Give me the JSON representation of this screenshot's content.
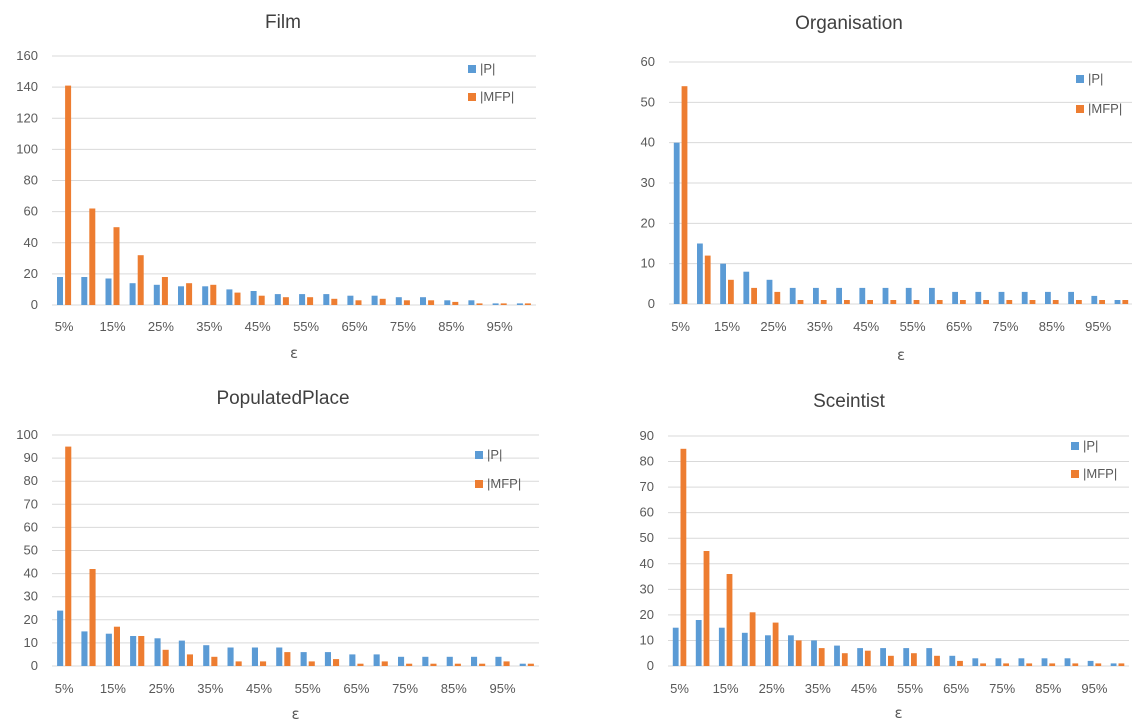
{
  "colors": {
    "p": "#5b9bd5",
    "mfp": "#ed7d31",
    "grid": "#d9d9d9",
    "text": "#595959"
  },
  "chart_data": [
    {
      "type": "bar",
      "title": "Film",
      "xlabel": "ε",
      "ylabel": "",
      "ylim": [
        0,
        160
      ],
      "yticks": [
        0,
        20,
        40,
        60,
        80,
        100,
        120,
        140,
        160
      ],
      "grid": true,
      "legend_position": "top-right",
      "categories": [
        "5%",
        "10%",
        "15%",
        "20%",
        "25%",
        "30%",
        "35%",
        "40%",
        "45%",
        "50%",
        "55%",
        "60%",
        "65%",
        "70%",
        "75%",
        "80%",
        "85%",
        "90%",
        "95%",
        "100%"
      ],
      "xtick_labels": [
        "5%",
        "",
        "15%",
        "",
        "25%",
        "",
        "35%",
        "",
        "45%",
        "",
        "55%",
        "",
        "65%",
        "",
        "75%",
        "",
        "85%",
        "",
        "95%",
        ""
      ],
      "series": [
        {
          "name": "|P|",
          "color": "#5b9bd5",
          "values": [
            18,
            18,
            17,
            14,
            13,
            12,
            12,
            10,
            9,
            7,
            7,
            7,
            6,
            6,
            5,
            5,
            3,
            3,
            1,
            1
          ]
        },
        {
          "name": "|MFP|",
          "color": "#ed7d31",
          "values": [
            141,
            62,
            50,
            32,
            18,
            14,
            13,
            8,
            6,
            5,
            5,
            4,
            3,
            4,
            3,
            3,
            2,
            1,
            1,
            1
          ]
        }
      ]
    },
    {
      "type": "bar",
      "title": "Organisation",
      "xlabel": "ε",
      "ylabel": "",
      "ylim": [
        0,
        60
      ],
      "yticks": [
        0,
        10,
        20,
        30,
        40,
        50,
        60
      ],
      "grid": true,
      "legend_position": "top-right",
      "categories": [
        "5%",
        "10%",
        "15%",
        "20%",
        "25%",
        "30%",
        "35%",
        "40%",
        "45%",
        "50%",
        "55%",
        "60%",
        "65%",
        "70%",
        "75%",
        "80%",
        "85%",
        "90%",
        "95%",
        "100%"
      ],
      "xtick_labels": [
        "5%",
        "",
        "15%",
        "",
        "25%",
        "",
        "35%",
        "",
        "45%",
        "",
        "55%",
        "",
        "65%",
        "",
        "75%",
        "",
        "85%",
        "",
        "95%",
        ""
      ],
      "series": [
        {
          "name": "|P|",
          "color": "#5b9bd5",
          "values": [
            40,
            15,
            10,
            8,
            6,
            4,
            4,
            4,
            4,
            4,
            4,
            4,
            3,
            3,
            3,
            3,
            3,
            3,
            2,
            1
          ]
        },
        {
          "name": "|MFP|",
          "color": "#ed7d31",
          "values": [
            54,
            12,
            6,
            4,
            3,
            1,
            1,
            1,
            1,
            1,
            1,
            1,
            1,
            1,
            1,
            1,
            1,
            1,
            1,
            1
          ]
        }
      ]
    },
    {
      "type": "bar",
      "title": "PopulatedPlace",
      "xlabel": "ε",
      "ylabel": "",
      "ylim": [
        0,
        100
      ],
      "yticks": [
        0,
        10,
        20,
        30,
        40,
        50,
        60,
        70,
        80,
        90,
        100
      ],
      "grid": true,
      "legend_position": "top-right",
      "categories": [
        "5%",
        "10%",
        "15%",
        "20%",
        "25%",
        "30%",
        "35%",
        "40%",
        "45%",
        "50%",
        "55%",
        "60%",
        "65%",
        "70%",
        "75%",
        "80%",
        "85%",
        "90%",
        "95%",
        "100%"
      ],
      "xtick_labels": [
        "5%",
        "",
        "15%",
        "",
        "25%",
        "",
        "35%",
        "",
        "45%",
        "",
        "55%",
        "",
        "65%",
        "",
        "75%",
        "",
        "85%",
        "",
        "95%",
        ""
      ],
      "series": [
        {
          "name": "|P|",
          "color": "#5b9bd5",
          "values": [
            24,
            15,
            14,
            13,
            12,
            11,
            9,
            8,
            8,
            8,
            6,
            6,
            5,
            5,
            4,
            4,
            4,
            4,
            4,
            1
          ]
        },
        {
          "name": "|MFP|",
          "color": "#ed7d31",
          "values": [
            95,
            42,
            17,
            13,
            7,
            5,
            4,
            2,
            2,
            6,
            2,
            3,
            1,
            2,
            1,
            1,
            1,
            1,
            2,
            1
          ]
        }
      ]
    },
    {
      "type": "bar",
      "title": "Sceintist",
      "xlabel": "ε",
      "ylabel": "",
      "ylim": [
        0,
        90
      ],
      "yticks": [
        0,
        10,
        20,
        30,
        40,
        50,
        60,
        70,
        80,
        90
      ],
      "grid": true,
      "legend_position": "top-right",
      "categories": [
        "5%",
        "10%",
        "15%",
        "20%",
        "25%",
        "30%",
        "35%",
        "40%",
        "45%",
        "50%",
        "55%",
        "60%",
        "65%",
        "70%",
        "75%",
        "80%",
        "85%",
        "90%",
        "95%",
        "100%"
      ],
      "xtick_labels": [
        "5%",
        "",
        "15%",
        "",
        "25%",
        "",
        "35%",
        "",
        "45%",
        "",
        "55%",
        "",
        "65%",
        "",
        "75%",
        "",
        "85%",
        "",
        "95%",
        ""
      ],
      "series": [
        {
          "name": "|P|",
          "color": "#5b9bd5",
          "values": [
            15,
            18,
            15,
            13,
            12,
            12,
            10,
            8,
            7,
            7,
            7,
            7,
            4,
            3,
            3,
            3,
            3,
            3,
            2,
            1
          ]
        },
        {
          "name": "|MFP|",
          "color": "#ed7d31",
          "values": [
            85,
            45,
            36,
            21,
            17,
            10,
            7,
            5,
            6,
            4,
            5,
            4,
            2,
            1,
            1,
            1,
            1,
            1,
            1,
            1
          ]
        }
      ]
    }
  ]
}
